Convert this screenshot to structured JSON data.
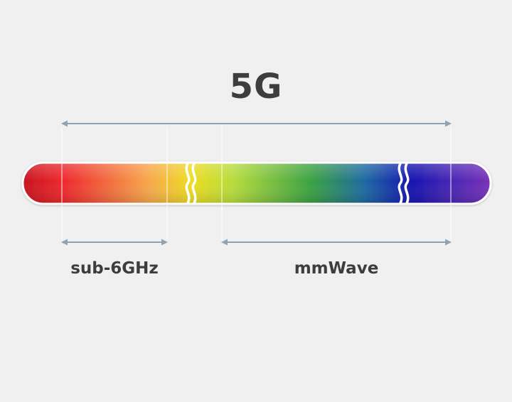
{
  "title": "5G",
  "labels": {
    "sub6": "sub-6GHz",
    "mmwave": "mmWave"
  },
  "colors": {
    "background": "#f0f0f0",
    "arrow": "#8fa3b2",
    "guide": "#ffffff",
    "text": "#3d3d3d",
    "spectrum": [
      "#c81420",
      "#ee2a2e",
      "#f7a84c",
      "#eedc20",
      "#b6dc3c",
      "#38a044",
      "#1e6aa2",
      "#1414b0",
      "#4624b4",
      "#7832b8"
    ]
  }
}
